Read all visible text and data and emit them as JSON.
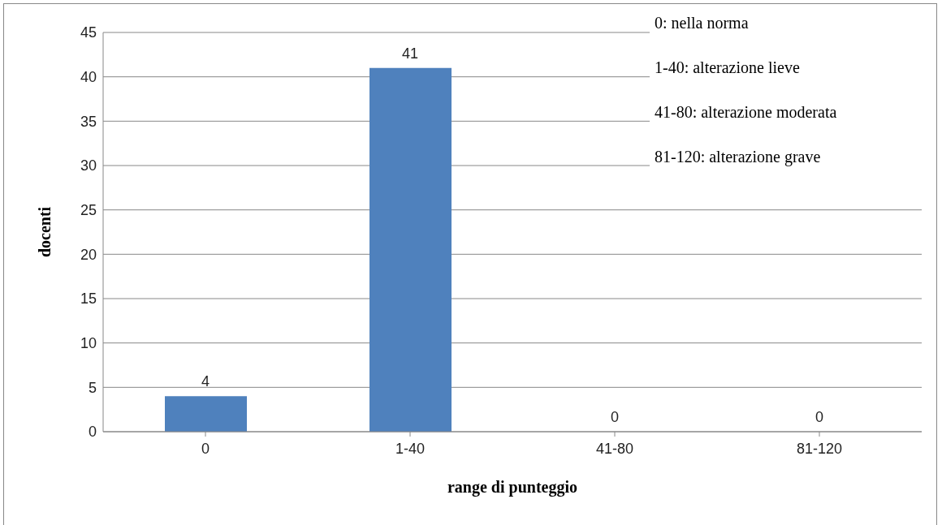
{
  "chart_data": {
    "type": "bar",
    "xlabel": "range di punteggio",
    "ylabel": "docenti",
    "categories": [
      "0",
      "1-40",
      "41-80",
      "81-120"
    ],
    "values": [
      4,
      41,
      0,
      0
    ],
    "color": "#4f81bd",
    "ylim": [
      0,
      45
    ],
    "yticks": [
      0,
      5,
      10,
      15,
      20,
      25,
      30,
      35,
      40,
      45
    ],
    "grid": "y",
    "data_labels": true,
    "annotations": [
      "0: nella norma",
      "1-40: alterazione lieve",
      "41-80: alterazione moderata",
      "81-120: alterazione grave"
    ]
  }
}
